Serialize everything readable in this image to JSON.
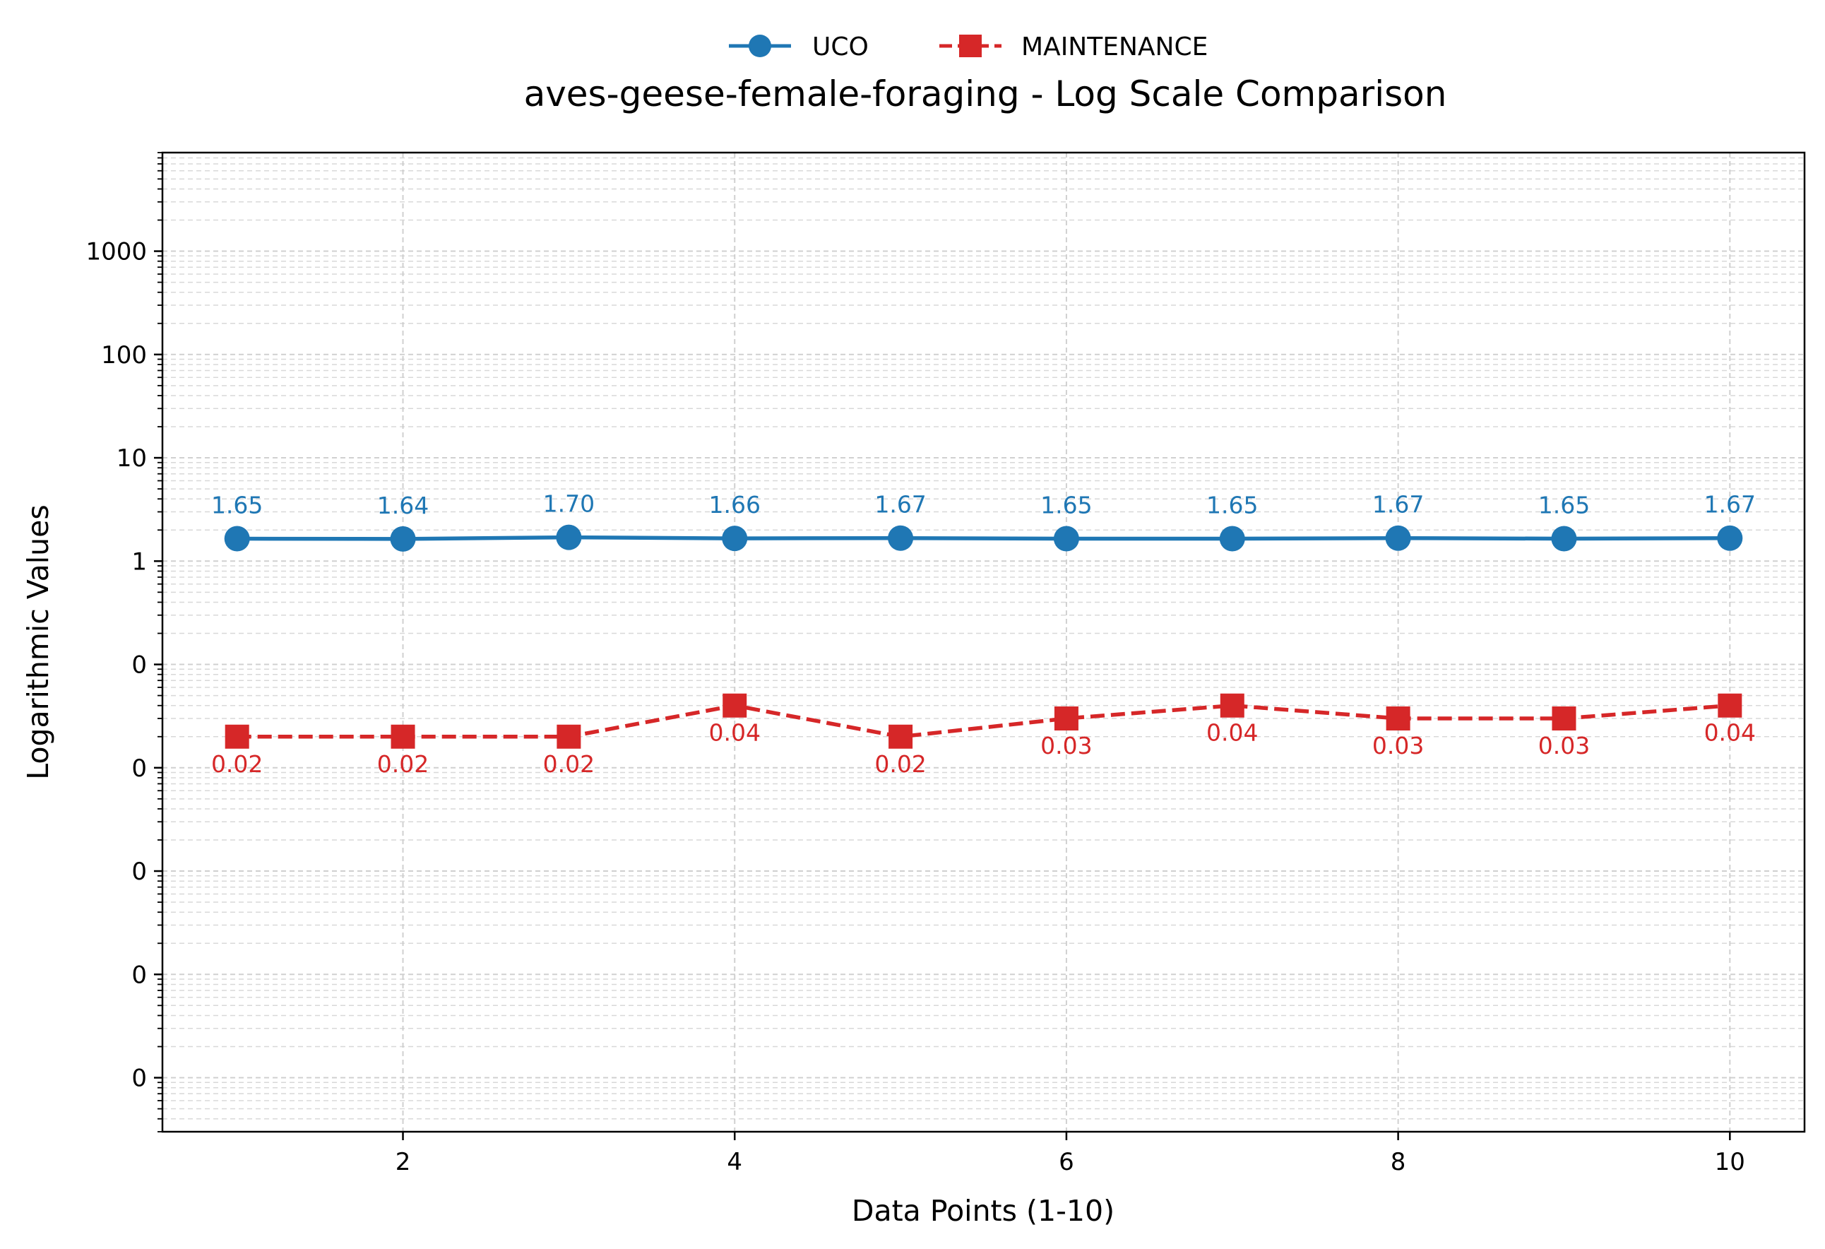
{
  "chart_data": {
    "type": "line",
    "title": "aves-geese-female-foraging - Log Scale Comparison",
    "xlabel": "Data Points (1-10)",
    "ylabel": "Logarithmic Values",
    "x": [
      1,
      2,
      3,
      4,
      5,
      6,
      7,
      8,
      9,
      10
    ],
    "xticks": [
      2,
      4,
      6,
      8,
      10
    ],
    "xlim": [
      0.55,
      10.45
    ],
    "yscale": "log",
    "ylim": [
      3e-06,
      9000
    ],
    "yticks": [
      {
        "value": 1e-05,
        "label": "0"
      },
      {
        "value": 0.0001,
        "label": "0"
      },
      {
        "value": 0.001,
        "label": "0"
      },
      {
        "value": 0.01,
        "label": "0"
      },
      {
        "value": 0.1,
        "label": "0"
      },
      {
        "value": 1,
        "label": "1"
      },
      {
        "value": 10,
        "label": "10"
      },
      {
        "value": 100,
        "label": "100"
      },
      {
        "value": 1000,
        "label": "1000"
      }
    ],
    "grid": true,
    "legend_position": "top-center",
    "series": [
      {
        "name": "UCO",
        "color": "#1f77b4",
        "marker": "circle",
        "linestyle": "solid",
        "values": [
          1.65,
          1.64,
          1.7,
          1.66,
          1.67,
          1.65,
          1.65,
          1.67,
          1.65,
          1.67
        ],
        "labels": [
          "1.65",
          "1.64",
          "1.70",
          "1.66",
          "1.67",
          "1.65",
          "1.65",
          "1.67",
          "1.65",
          "1.67"
        ],
        "label_position": "above"
      },
      {
        "name": "MAINTENANCE",
        "color": "#d62728",
        "marker": "square",
        "linestyle": "dashed",
        "values": [
          0.02,
          0.02,
          0.02,
          0.04,
          0.02,
          0.03,
          0.04,
          0.03,
          0.03,
          0.04
        ],
        "labels": [
          "0.02",
          "0.02",
          "0.02",
          "0.04",
          "0.02",
          "0.03",
          "0.04",
          "0.03",
          "0.03",
          "0.04"
        ],
        "label_position": "below"
      }
    ]
  }
}
